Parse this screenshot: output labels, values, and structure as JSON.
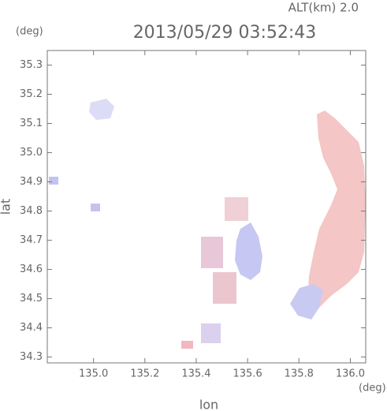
{
  "chart_data": {
    "type": "map",
    "title": "2013/05/29 03:52:43",
    "subtitle": "ALT(km) 2.0",
    "x_label": "lon",
    "y_label": "lat",
    "x_unit": "(deg)",
    "y_unit": "(deg)",
    "xlim": [
      134.82,
      136.06
    ],
    "ylim": [
      34.28,
      35.35
    ],
    "xticks": [
      {
        "value": 135,
        "label": "135.0"
      },
      135.2,
      135.4,
      135.6,
      135.8,
      {
        "value": 136,
        "label": "136.0"
      }
    ],
    "yticks": [
      35.3,
      35.2,
      35.1,
      {
        "value": 35,
        "label": "35.0"
      },
      34.9,
      34.8,
      34.7,
      34.6,
      34.5,
      34.4,
      34.3
    ]
  }
}
